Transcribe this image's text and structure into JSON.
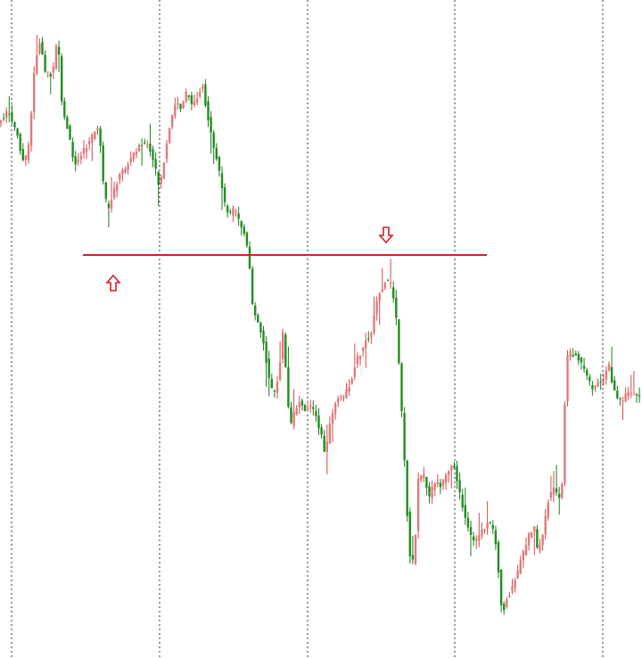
{
  "chart_data": {
    "type": "candlestick",
    "title": "",
    "xlabel": "",
    "ylabel": "",
    "x_ticks": [],
    "y_ticks": [],
    "ylim": [
      0,
      738
    ],
    "grid": "vertical-dotted",
    "colors": {
      "bull": "#e07a7a",
      "bear": "#1e8f1e",
      "wick_bull": "#d44b4b",
      "wick_bear": "#1e7a1e",
      "level": "#d61e2a",
      "grid": "#333333",
      "arrow": "#d61e2a"
    },
    "path_points": [
      [
        0,
        140
      ],
      [
        12,
        125
      ],
      [
        22,
        150
      ],
      [
        30,
        185
      ],
      [
        36,
        160
      ],
      [
        42,
        70
      ],
      [
        48,
        48
      ],
      [
        54,
        80
      ],
      [
        62,
        85
      ],
      [
        68,
        40
      ],
      [
        72,
        115
      ],
      [
        80,
        150
      ],
      [
        86,
        185
      ],
      [
        92,
        175
      ],
      [
        100,
        165
      ],
      [
        108,
        150
      ],
      [
        114,
        140
      ],
      [
        118,
        200
      ],
      [
        124,
        240
      ],
      [
        130,
        215
      ],
      [
        138,
        195
      ],
      [
        146,
        185
      ],
      [
        154,
        170
      ],
      [
        162,
        160
      ],
      [
        170,
        165
      ],
      [
        176,
        185
      ],
      [
        182,
        210
      ],
      [
        188,
        175
      ],
      [
        194,
        140
      ],
      [
        200,
        115
      ],
      [
        206,
        120
      ],
      [
        212,
        105
      ],
      [
        218,
        115
      ],
      [
        224,
        110
      ],
      [
        230,
        95
      ],
      [
        236,
        130
      ],
      [
        242,
        165
      ],
      [
        248,
        185
      ],
      [
        254,
        225
      ],
      [
        260,
        240
      ],
      [
        266,
        235
      ],
      [
        272,
        250
      ],
      [
        278,
        265
      ],
      [
        282,
        290
      ],
      [
        286,
        340
      ],
      [
        292,
        360
      ],
      [
        298,
        380
      ],
      [
        304,
        420
      ],
      [
        310,
        445
      ],
      [
        316,
        420
      ],
      [
        320,
        370
      ],
      [
        324,
        420
      ],
      [
        328,
        480
      ],
      [
        334,
        460
      ],
      [
        340,
        450
      ],
      [
        346,
        460
      ],
      [
        352,
        455
      ],
      [
        358,
        470
      ],
      [
        364,
        490
      ],
      [
        368,
        510
      ],
      [
        374,
        470
      ],
      [
        380,
        450
      ],
      [
        388,
        445
      ],
      [
        396,
        430
      ],
      [
        402,
        405
      ],
      [
        408,
        395
      ],
      [
        414,
        380
      ],
      [
        420,
        375
      ],
      [
        424,
        340
      ],
      [
        430,
        325
      ],
      [
        436,
        315
      ],
      [
        442,
        320
      ],
      [
        448,
        360
      ],
      [
        452,
        440
      ],
      [
        456,
        500
      ],
      [
        460,
        580
      ],
      [
        464,
        640
      ],
      [
        468,
        620
      ],
      [
        472,
        540
      ],
      [
        478,
        530
      ],
      [
        484,
        560
      ],
      [
        490,
        540
      ],
      [
        498,
        545
      ],
      [
        506,
        530
      ],
      [
        512,
        520
      ],
      [
        518,
        550
      ],
      [
        524,
        580
      ],
      [
        530,
        600
      ],
      [
        536,
        610
      ],
      [
        542,
        595
      ],
      [
        548,
        590
      ],
      [
        554,
        585
      ],
      [
        558,
        600
      ],
      [
        562,
        640
      ],
      [
        566,
        690
      ],
      [
        572,
        670
      ],
      [
        578,
        660
      ],
      [
        584,
        640
      ],
      [
        590,
        620
      ],
      [
        596,
        600
      ],
      [
        602,
        590
      ],
      [
        606,
        620
      ],
      [
        612,
        600
      ],
      [
        618,
        560
      ],
      [
        624,
        545
      ],
      [
        630,
        560
      ],
      [
        634,
        540
      ],
      [
        638,
        400
      ],
      [
        644,
        395
      ],
      [
        650,
        400
      ],
      [
        656,
        410
      ],
      [
        662,
        425
      ],
      [
        668,
        435
      ],
      [
        674,
        430
      ],
      [
        680,
        425
      ],
      [
        686,
        410
      ],
      [
        692,
        440
      ],
      [
        698,
        450
      ],
      [
        704,
        445
      ],
      [
        710,
        440
      ],
      [
        720,
        448
      ]
    ],
    "level_line": {
      "price_y": 286,
      "x_start": 93,
      "x_end": 546
    },
    "arrows": [
      {
        "direction": "up",
        "x": 127,
        "y": 318
      },
      {
        "direction": "down",
        "x": 433,
        "y": 263
      }
    ],
    "vertical_grid_x": [
      13,
      179,
      345,
      510,
      676
    ]
  }
}
